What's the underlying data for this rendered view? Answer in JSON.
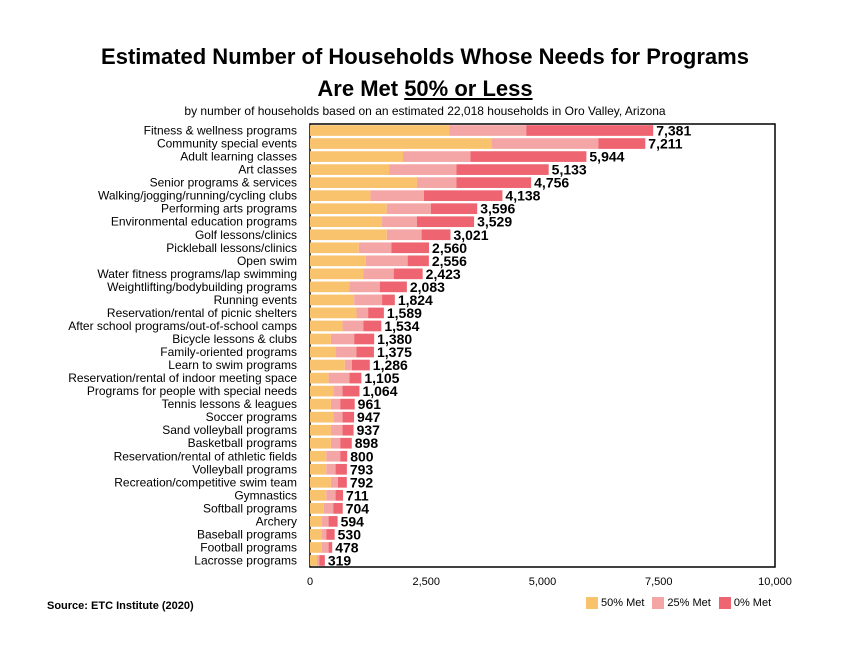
{
  "header": {
    "title_line1": "Estimated Number of Households Whose Needs for Programs",
    "title_line2_prefix": "Are Met ",
    "title_line2_underlined": "50% or Less",
    "subtitle": "by number of households based on an estimated 22,018 households in Oro Valley, Arizona"
  },
  "source": "Source:  ETC Institute (2020)",
  "colors": {
    "met50": "#F9C36E",
    "met25": "#F4A6A6",
    "met0": "#EE6470"
  },
  "chart_data": {
    "type": "bar",
    "orientation": "horizontal",
    "stacked": true,
    "categories": [
      "Fitness & wellness programs",
      "Community special events",
      "Adult learning classes",
      "Art classes",
      "Senior programs & services",
      "Walking/jogging/running/cycling clubs",
      "Performing arts programs",
      "Environmental education programs",
      "Golf lessons/clinics",
      "Pickleball lessons/clinics",
      "Open swim",
      "Water fitness programs/lap swimming",
      "Weightlifting/bodybuilding programs",
      "Running events",
      "Reservation/rental of picnic shelters",
      "After school programs/out-of-school camps",
      "Bicycle lessons & clubs",
      "Family-oriented programs",
      "Learn to swim programs",
      "Reservation/rental of indoor meeting space",
      "Programs for people with special needs",
      "Tennis lessons & leagues",
      "Soccer programs",
      "Sand volleyball programs",
      "Basketball programs",
      "Reservation/rental of athletic fields",
      "Volleyball programs",
      "Recreation/competitive swim team",
      "Gymnastics",
      "Softball programs",
      "Archery",
      "Baseball programs",
      "Football programs",
      "Lacrosse programs"
    ],
    "series": [
      {
        "name": "50% Met",
        "values": [
          3000,
          3900,
          2000,
          1700,
          2300,
          1300,
          1650,
          1550,
          1650,
          1050,
          1200,
          1150,
          850,
          950,
          1000,
          700,
          450,
          550,
          750,
          400,
          500,
          450,
          500,
          450,
          450,
          350,
          350,
          450,
          350,
          300,
          250,
          250,
          250,
          150
        ]
      },
      {
        "name": "25% Met",
        "values": [
          1650,
          2300,
          1450,
          1450,
          850,
          1150,
          950,
          750,
          750,
          700,
          900,
          650,
          650,
          600,
          250,
          450,
          500,
          450,
          150,
          450,
          200,
          200,
          200,
          250,
          200,
          300,
          200,
          150,
          200,
          200,
          150,
          100,
          150,
          50
        ]
      },
      {
        "name": "0% Met",
        "values": [
          2731,
          1011,
          2494,
          1983,
          1606,
          1688,
          996,
          1229,
          621,
          810,
          456,
          623,
          583,
          274,
          339,
          384,
          430,
          375,
          386,
          255,
          364,
          311,
          247,
          237,
          248,
          150,
          243,
          192,
          161,
          204,
          194,
          180,
          78,
          119
        ]
      }
    ],
    "totals": [
      7381,
      7211,
      5944,
      5133,
      4756,
      4138,
      3596,
      3529,
      3021,
      2560,
      2556,
      2423,
      2083,
      1824,
      1589,
      1534,
      1380,
      1375,
      1286,
      1105,
      1064,
      961,
      947,
      937,
      898,
      800,
      793,
      792,
      711,
      704,
      594,
      530,
      478,
      319
    ],
    "total_labels": [
      "7,381",
      "7,211",
      "5,944",
      "5,133",
      "4,756",
      "4,138",
      "3,596",
      "3,529",
      "3,021",
      "2,560",
      "2,556",
      "2,423",
      "2,083",
      "1,824",
      "1,589",
      "1,534",
      "1,380",
      "1,375",
      "1,286",
      "1,105",
      "1,064",
      "961",
      "947",
      "937",
      "898",
      "800",
      "793",
      "792",
      "711",
      "704",
      "594",
      "530",
      "478",
      "319"
    ],
    "xlim": [
      0,
      10000
    ],
    "x_ticks": [
      0,
      2500,
      5000,
      7500,
      10000
    ],
    "x_tick_labels": [
      "0",
      "2,500",
      "5,000",
      "7,500",
      "10,000"
    ],
    "legend_position": "bottom-right",
    "grid": false
  }
}
